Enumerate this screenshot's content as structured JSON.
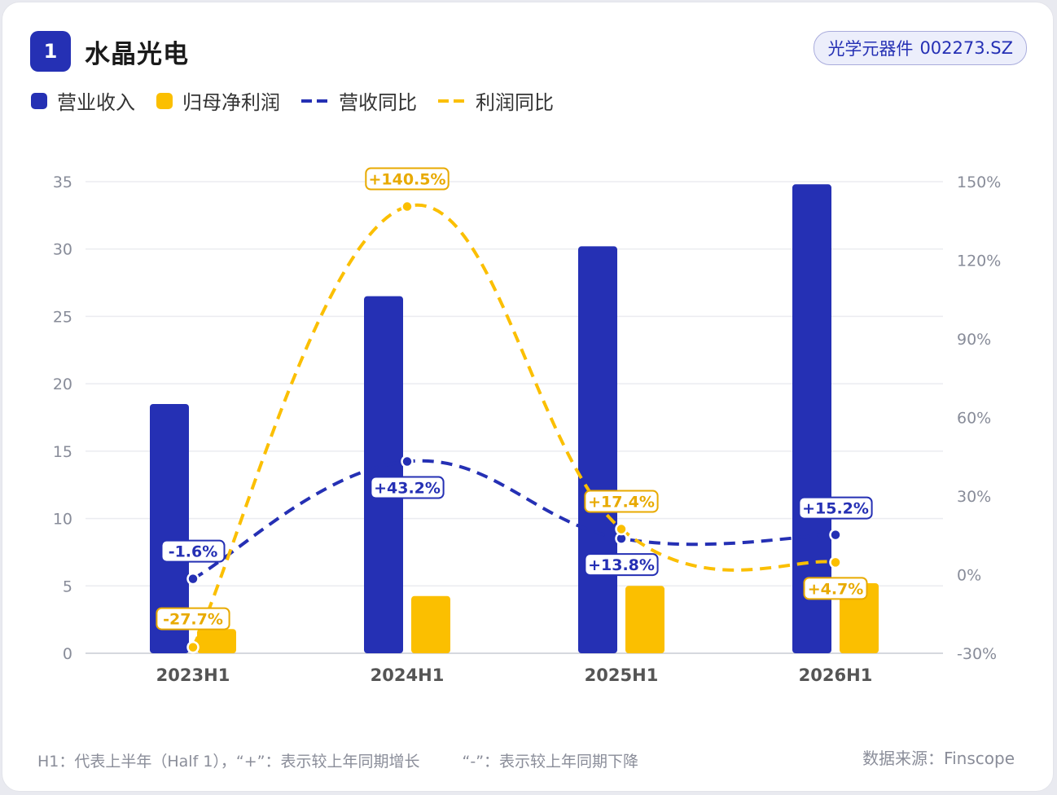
{
  "header": {
    "rank": "1",
    "title": "水晶光电",
    "industry": "光学元器件",
    "ticker": "002273.SZ"
  },
  "legend": {
    "revenue": "营业收入",
    "profit": "归母净利润",
    "revenue_yoy": "营收同比",
    "profit_yoy": "利润同比"
  },
  "colors": {
    "revenue": "#2530b4",
    "profit": "#fbbf00",
    "grid": "#ebecf0",
    "axis_text": "#888c99"
  },
  "chart_data": {
    "type": "bar",
    "categories": [
      "2023H1",
      "2024H1",
      "2025H1",
      "2026H1"
    ],
    "series": [
      {
        "name": "营业收入",
        "kind": "bar",
        "axis": "left",
        "values": [
          18.5,
          26.5,
          30.2,
          34.8
        ]
      },
      {
        "name": "归母净利润",
        "kind": "bar",
        "axis": "left",
        "values": [
          1.8,
          4.25,
          5.0,
          5.2
        ]
      },
      {
        "name": "营收同比",
        "kind": "line",
        "axis": "right",
        "values": [
          -1.6,
          43.2,
          13.8,
          15.2
        ],
        "labels": [
          "-1.6%",
          "+43.2%",
          "+13.8%",
          "+15.2%"
        ]
      },
      {
        "name": "利润同比",
        "kind": "line",
        "axis": "right",
        "values": [
          -27.7,
          140.5,
          17.4,
          4.7
        ],
        "labels": [
          "-27.7%",
          "+140.5%",
          "+17.4%",
          "+4.7%"
        ]
      }
    ],
    "y_left": {
      "min": 0,
      "max": 35,
      "ticks": [
        "0",
        "5",
        "10",
        "15",
        "20",
        "25",
        "30",
        "35"
      ]
    },
    "y_right": {
      "min": -30,
      "max": 150,
      "ticks": [
        "-30%",
        "0%",
        "30%",
        "60%",
        "90%",
        "120%",
        "150%"
      ]
    },
    "grid": true,
    "legend_position": "top-left"
  },
  "footer": {
    "note1": "H1：代表上半年（Half 1），“+”：表示较上年同期增长",
    "note2": "“-”：表示较上年同期下降",
    "source": "数据来源：Finscope"
  }
}
